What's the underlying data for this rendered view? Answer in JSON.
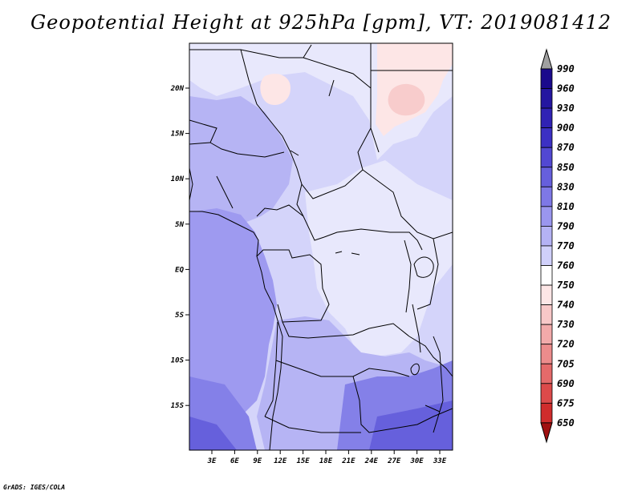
{
  "title": "Geopotential Height at 925hPa [gpm], VT: 2019081412",
  "credit": "GrADS: IGES/COLA",
  "map": {
    "lat_labels": [
      "20N",
      "15N",
      "10N",
      "5N",
      "EQ",
      "5S",
      "10S",
      "15S"
    ],
    "lon_labels": [
      "3E",
      "6E",
      "9E",
      "12E",
      "15E",
      "18E",
      "21E",
      "24E",
      "27E",
      "30E",
      "33E"
    ]
  },
  "colorbar": {
    "levels": [
      "990",
      "960",
      "930",
      "900",
      "870",
      "850",
      "830",
      "810",
      "790",
      "770",
      "760",
      "750",
      "740",
      "730",
      "720",
      "705",
      "690",
      "675",
      "650"
    ],
    "colors": [
      "#1a0a8c",
      "#2416a0",
      "#3022b4",
      "#3c30c4",
      "#5248d2",
      "#665fdc",
      "#7e78e6",
      "#9a96ee",
      "#b4b2f4",
      "#d0d0fa",
      "#ffffff",
      "#fde6e6",
      "#f8c8c8",
      "#f2aaaa",
      "#ec8c8c",
      "#e46a6a",
      "#dc4a4a",
      "#d02c2c",
      "#b41414"
    ],
    "top_arrow_color": "#a0a0a0",
    "bottom_arrow_color": "#a01010"
  },
  "field_colors": {
    "c760": "#ffffff",
    "c750": "#fde6e6",
    "c740": "#f8cccc",
    "c770": "#e8e8fc",
    "c790": "#d4d4fa",
    "c810": "#b6b4f4",
    "c830": "#9e9af0",
    "c850": "#8480e8",
    "c870": "#6660dc",
    "c900": "#4a42cc"
  }
}
